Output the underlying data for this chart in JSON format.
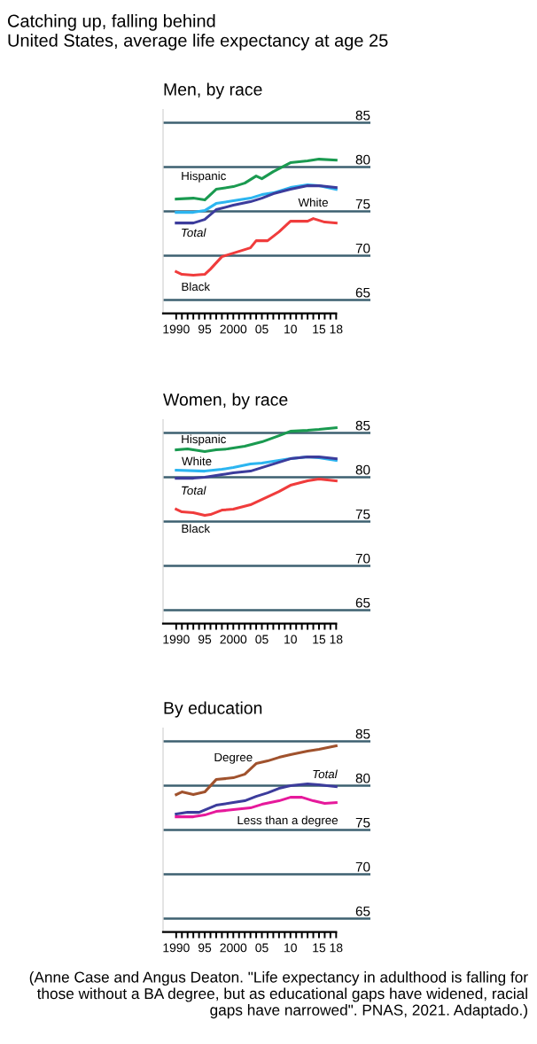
{
  "chart_data": [
    {
      "type": "other",
      "title": "Catching up, falling behind",
      "subtitle": "United States, average life expectancy at age 25"
    },
    {
      "type": "line",
      "title": "Men, by race",
      "xlim": [
        1987.7,
        2024
      ],
      "ylim": [
        63.5,
        86.5
      ],
      "xticks": [
        {
          "value": 1990,
          "label": "1990"
        },
        {
          "value": 1991,
          "label": null
        },
        {
          "value": 1992,
          "label": null
        },
        {
          "value": 1993,
          "label": null
        },
        {
          "value": 1994,
          "label": null
        },
        {
          "value": 1995,
          "label": "95"
        },
        {
          "value": 1996,
          "label": null
        },
        {
          "value": 1997,
          "label": null
        },
        {
          "value": 1998,
          "label": null
        },
        {
          "value": 1999,
          "label": null
        },
        {
          "value": 2000,
          "label": "2000"
        },
        {
          "value": 2001,
          "label": null
        },
        {
          "value": 2002,
          "label": null
        },
        {
          "value": 2003,
          "label": null
        },
        {
          "value": 2004,
          "label": null
        },
        {
          "value": 2005,
          "label": "05"
        },
        {
          "value": 2006,
          "label": null
        },
        {
          "value": 2007,
          "label": null
        },
        {
          "value": 2008,
          "label": null
        },
        {
          "value": 2009,
          "label": null
        },
        {
          "value": 2010,
          "label": "10"
        },
        {
          "value": 2011,
          "label": null
        },
        {
          "value": 2012,
          "label": null
        },
        {
          "value": 2013,
          "label": null
        },
        {
          "value": 2014,
          "label": null
        },
        {
          "value": 2015,
          "label": "15"
        },
        {
          "value": 2016,
          "label": null
        },
        {
          "value": 2017,
          "label": null
        },
        {
          "value": 2018,
          "label": "18"
        }
      ],
      "yticks": [
        65,
        70,
        75,
        80,
        85
      ],
      "grid": "y",
      "series": [
        {
          "name": "Hispanic",
          "color": "#1a9a50",
          "x": [
            1990,
            1993,
            1995,
            1997,
            2000,
            2002,
            2004,
            2005,
            2007,
            2010,
            2013,
            2015,
            2018
          ],
          "values": [
            76.4,
            76.5,
            76.3,
            77.5,
            77.8,
            78.2,
            79.0,
            78.7,
            79.5,
            80.5,
            80.7,
            80.9,
            80.8
          ]
        },
        {
          "name": "White",
          "color": "#2cb5f0",
          "x": [
            1990,
            1993,
            1995,
            1997,
            2000,
            2003,
            2005,
            2007,
            2010,
            2013,
            2015,
            2018
          ],
          "values": [
            74.9,
            74.9,
            75.1,
            75.9,
            76.2,
            76.5,
            76.9,
            77.1,
            77.7,
            78.0,
            77.9,
            77.5
          ]
        },
        {
          "name": "Total",
          "color": "#3c3c9c",
          "x": [
            1990,
            1993,
            1995,
            1997,
            2000,
            2003,
            2005,
            2007,
            2010,
            2013,
            2015,
            2018
          ],
          "values": [
            73.7,
            73.7,
            74.1,
            75.2,
            75.7,
            76.1,
            76.5,
            77.0,
            77.5,
            77.9,
            77.9,
            77.7
          ]
        },
        {
          "name": "Black",
          "color": "#f03c3c",
          "x": [
            1990,
            1991,
            1993,
            1995,
            1996,
            1998,
            2000,
            2003,
            2004,
            2006,
            2008,
            2010,
            2013,
            2014,
            2016,
            2018
          ],
          "values": [
            68.2,
            67.9,
            67.8,
            67.9,
            68.5,
            69.9,
            70.3,
            70.9,
            71.7,
            71.7,
            72.7,
            73.9,
            73.9,
            74.2,
            73.8,
            73.7
          ]
        }
      ],
      "legend": false
    },
    {
      "type": "line",
      "title": "Women, by race",
      "xlim": [
        1987.7,
        2024
      ],
      "ylim": [
        63.5,
        86.5
      ],
      "xticks": [
        {
          "value": 1990,
          "label": "1990"
        },
        {
          "value": 1991,
          "label": null
        },
        {
          "value": 1992,
          "label": null
        },
        {
          "value": 1993,
          "label": null
        },
        {
          "value": 1994,
          "label": null
        },
        {
          "value": 1995,
          "label": "95"
        },
        {
          "value": 1996,
          "label": null
        },
        {
          "value": 1997,
          "label": null
        },
        {
          "value": 1998,
          "label": null
        },
        {
          "value": 1999,
          "label": null
        },
        {
          "value": 2000,
          "label": "2000"
        },
        {
          "value": 2001,
          "label": null
        },
        {
          "value": 2002,
          "label": null
        },
        {
          "value": 2003,
          "label": null
        },
        {
          "value": 2004,
          "label": null
        },
        {
          "value": 2005,
          "label": "05"
        },
        {
          "value": 2006,
          "label": null
        },
        {
          "value": 2007,
          "label": null
        },
        {
          "value": 2008,
          "label": null
        },
        {
          "value": 2009,
          "label": null
        },
        {
          "value": 2010,
          "label": "10"
        },
        {
          "value": 2011,
          "label": null
        },
        {
          "value": 2012,
          "label": null
        },
        {
          "value": 2013,
          "label": null
        },
        {
          "value": 2014,
          "label": null
        },
        {
          "value": 2015,
          "label": "15"
        },
        {
          "value": 2016,
          "label": null
        },
        {
          "value": 2017,
          "label": null
        },
        {
          "value": 2018,
          "label": "18"
        }
      ],
      "yticks": [
        65,
        70,
        75,
        80,
        85
      ],
      "grid": "y",
      "series": [
        {
          "name": "Hispanic",
          "color": "#1a9a50",
          "x": [
            1990,
            1992,
            1995,
            1997,
            1999,
            2002,
            2005,
            2008,
            2010,
            2013,
            2015,
            2018
          ],
          "values": [
            83.1,
            83.2,
            82.9,
            83.1,
            83.2,
            83.5,
            84.0,
            84.7,
            85.2,
            85.3,
            85.4,
            85.6
          ]
        },
        {
          "name": "White",
          "color": "#2cb5f0",
          "x": [
            1990,
            1995,
            1998,
            2000,
            2003,
            2005,
            2008,
            2010,
            2013,
            2015,
            2018
          ],
          "values": [
            80.8,
            80.7,
            80.9,
            81.1,
            81.5,
            81.6,
            81.9,
            82.1,
            82.3,
            82.2,
            81.9
          ]
        },
        {
          "name": "Total",
          "color": "#3c3c9c",
          "x": [
            1990,
            1993,
            1995,
            1998,
            2000,
            2003,
            2005,
            2008,
            2010,
            2013,
            2015,
            2018
          ],
          "values": [
            79.9,
            79.9,
            80.0,
            80.3,
            80.5,
            80.7,
            81.1,
            81.7,
            82.1,
            82.3,
            82.3,
            82.1
          ]
        },
        {
          "name": "Black",
          "color": "#f03c3c",
          "x": [
            1990,
            1991,
            1993,
            1995,
            1996,
            1998,
            2000,
            2003,
            2005,
            2008,
            2010,
            2013,
            2015,
            2018
          ],
          "values": [
            76.4,
            76.1,
            76.0,
            75.7,
            75.8,
            76.3,
            76.4,
            76.9,
            77.5,
            78.4,
            79.1,
            79.6,
            79.8,
            79.6
          ]
        }
      ],
      "legend": false
    },
    {
      "type": "line",
      "title": "By education",
      "xlim": [
        1987.7,
        2024
      ],
      "ylim": [
        63.5,
        86.5
      ],
      "xticks": [
        {
          "value": 1990,
          "label": "1990"
        },
        {
          "value": 1991,
          "label": null
        },
        {
          "value": 1992,
          "label": null
        },
        {
          "value": 1993,
          "label": null
        },
        {
          "value": 1994,
          "label": null
        },
        {
          "value": 1995,
          "label": "95"
        },
        {
          "value": 1996,
          "label": null
        },
        {
          "value": 1997,
          "label": null
        },
        {
          "value": 1998,
          "label": null
        },
        {
          "value": 1999,
          "label": null
        },
        {
          "value": 2000,
          "label": "2000"
        },
        {
          "value": 2001,
          "label": null
        },
        {
          "value": 2002,
          "label": null
        },
        {
          "value": 2003,
          "label": null
        },
        {
          "value": 2004,
          "label": null
        },
        {
          "value": 2005,
          "label": "05"
        },
        {
          "value": 2006,
          "label": null
        },
        {
          "value": 2007,
          "label": null
        },
        {
          "value": 2008,
          "label": null
        },
        {
          "value": 2009,
          "label": null
        },
        {
          "value": 2010,
          "label": "10"
        },
        {
          "value": 2011,
          "label": null
        },
        {
          "value": 2012,
          "label": null
        },
        {
          "value": 2013,
          "label": null
        },
        {
          "value": 2014,
          "label": null
        },
        {
          "value": 2015,
          "label": "15"
        },
        {
          "value": 2016,
          "label": null
        },
        {
          "value": 2017,
          "label": null
        },
        {
          "value": 2018,
          "label": "18"
        }
      ],
      "yticks": [
        65,
        70,
        75,
        80,
        85
      ],
      "grid": "y",
      "series": [
        {
          "name": "Degree",
          "color": "#a0522d",
          "x": [
            1990,
            1991,
            1993,
            1995,
            1997,
            2000,
            2002,
            2004,
            2006,
            2008,
            2010,
            2013,
            2015,
            2018
          ],
          "values": [
            79.0,
            79.3,
            79.0,
            79.3,
            80.7,
            80.9,
            81.3,
            82.5,
            82.8,
            83.2,
            83.5,
            83.9,
            84.1,
            84.5
          ]
        },
        {
          "name": "Total",
          "color": "#3c3c9c",
          "x": [
            1990,
            1992,
            1994,
            1997,
            2000,
            2002,
            2004,
            2006,
            2008,
            2010,
            2013,
            2015,
            2018
          ],
          "values": [
            76.8,
            77.0,
            77.0,
            77.8,
            78.1,
            78.3,
            78.8,
            79.2,
            79.7,
            80.0,
            80.2,
            80.1,
            79.9
          ]
        },
        {
          "name": "Less than a degree",
          "color": "#e6199b",
          "x": [
            1990,
            1993,
            1995,
            1997,
            2000,
            2003,
            2005,
            2008,
            2010,
            2012,
            2014,
            2016,
            2018
          ],
          "values": [
            76.5,
            76.5,
            76.7,
            77.1,
            77.3,
            77.5,
            77.9,
            78.3,
            78.7,
            78.7,
            78.3,
            78.0,
            78.1
          ]
        }
      ],
      "legend": false,
      "annotations": [
        "(Anne Case and Angus Deaton. \"Life expectancy in adulthood is falling for\nthose without a BA degree, but as educational gaps have widened, racial\ngaps have narrowed\". PNAS, 2021. Adaptado.)"
      ]
    }
  ]
}
